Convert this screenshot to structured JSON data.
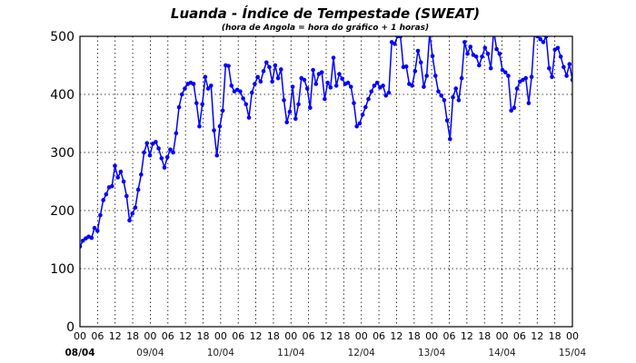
{
  "chart_data": {
    "type": "line",
    "title": "Luanda - Índice de Tempestade (SWEAT)",
    "subtitle": "(hora de Angola = hora do gráfico + 1 horas)",
    "xlabel": "",
    "ylabel": "",
    "ylim": [
      0,
      500
    ],
    "yticks": [
      "0",
      "100",
      "200",
      "300",
      "400",
      "500"
    ],
    "xlim_hours": [
      0,
      168
    ],
    "hour_tick_labels": [
      "00",
      "06",
      "12",
      "18",
      "00",
      "06",
      "12",
      "18",
      "00",
      "06",
      "12",
      "18",
      "00",
      "06",
      "12",
      "18",
      "00",
      "06",
      "12",
      "18",
      "00",
      "06",
      "12",
      "18",
      "00",
      "06",
      "12",
      "18",
      "00"
    ],
    "date_labels": [
      "08/04",
      "09/04",
      "10/04",
      "11/04",
      "12/04",
      "13/04",
      "14/04",
      "15/04"
    ],
    "grid": true,
    "line_color": "#0000ff",
    "series": [
      {
        "name": "SWEAT",
        "values": [
          138,
          148,
          152,
          155,
          153,
          170,
          165,
          192,
          218,
          228,
          240,
          242,
          277,
          257,
          267,
          250,
          225,
          183,
          195,
          205,
          236,
          262,
          300,
          316,
          295,
          315,
          318,
          307,
          290,
          274,
          292,
          305,
          300,
          333,
          378,
          400,
          410,
          418,
          420,
          418,
          385,
          345,
          383,
          430,
          410,
          415,
          338,
          295,
          345,
          372,
          450,
          449,
          415,
          405,
          408,
          405,
          393,
          383,
          360,
          403,
          418,
          430,
          422,
          440,
          455,
          447,
          422,
          450,
          428,
          443,
          390,
          352,
          370,
          413,
          358,
          383,
          428,
          425,
          410,
          377,
          442,
          418,
          435,
          438,
          392,
          420,
          412,
          463,
          415,
          435,
          427,
          418,
          420,
          413,
          385,
          345,
          350,
          365,
          378,
          392,
          405,
          415,
          420,
          412,
          415,
          398,
          403,
          490,
          487,
          500,
          500,
          447,
          448,
          418,
          415,
          440,
          475,
          455,
          413,
          432,
          505,
          466,
          432,
          405,
          398,
          390,
          355,
          323,
          395,
          410,
          390,
          428,
          490,
          470,
          482,
          468,
          465,
          450,
          465,
          480,
          470,
          445,
          510,
          478,
          470,
          442,
          438,
          432,
          372,
          377,
          410,
          422,
          425,
          428,
          385,
          430,
          505,
          500,
          495,
          490,
          500,
          445,
          430,
          477,
          480,
          465,
          447,
          432,
          452,
          425
        ]
      }
    ]
  }
}
